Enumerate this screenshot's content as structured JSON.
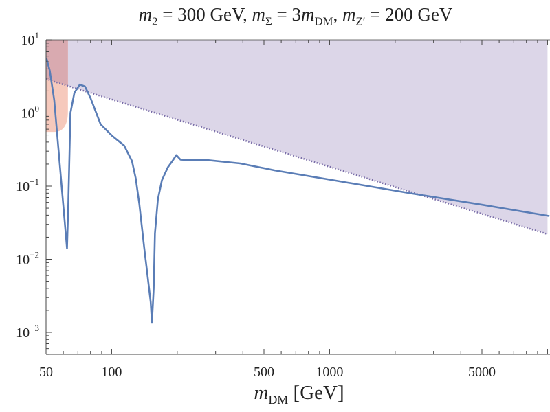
{
  "title": {
    "m": "m",
    "sub2": "2",
    "part1": " = 300 GeV, ",
    "m_sigma": "m",
    "sub_sigma": "Σ",
    "part2": " = 3",
    "m_dm": "m",
    "sub_dm": "DM",
    "part3": ", ",
    "m_z": "m",
    "sub_z": "Z′",
    "part4": " = 200 GeV"
  },
  "chart_data": {
    "type": "line",
    "title": "m2 = 300 GeV, mΣ = 3mDM, mZ′ = 200 GeV",
    "xlabel": "m_DM [GeV]",
    "xlabel_parts": {
      "m": "m",
      "sub": "DM",
      "unit": " [GeV]"
    },
    "ylabel": "",
    "xscale": "log",
    "yscale": "log",
    "xlim": [
      50,
      10000
    ],
    "ylim": [
      0.0005,
      10
    ],
    "grid": false,
    "x_ticks": [
      "50",
      "100",
      "500",
      "1000",
      "5000"
    ],
    "x_tick_values": [
      50,
      100,
      500,
      1000,
      5000
    ],
    "y_ticks": [
      {
        "value": 10,
        "base": "10",
        "exp": "1"
      },
      {
        "value": 1,
        "base": "10",
        "exp": "0"
      },
      {
        "value": 0.1,
        "base": "10",
        "exp": "−1"
      },
      {
        "value": 0.01,
        "base": "10",
        "exp": "−2"
      },
      {
        "value": 0.001,
        "base": "10",
        "exp": "−3"
      }
    ],
    "series": [
      {
        "color": "#5a7db6",
        "x": [
          50.1,
          52,
          54.5,
          62.4,
          63.2,
          64.7,
          67.5,
          71.5,
          75.5,
          80,
          89,
          101,
          114,
          124,
          129,
          134,
          141,
          151,
          153,
          156,
          158,
          163,
          170,
          181,
          190,
          198,
          207,
          218,
          271,
          389,
          560,
          1156,
          2393,
          4943,
          10200
        ],
        "y": [
          5.7,
          3.8,
          1.5,
          0.014,
          0.053,
          1.0,
          1.9,
          2.45,
          2.3,
          1.6,
          0.7,
          0.48,
          0.36,
          0.22,
          0.127,
          0.057,
          0.0146,
          0.0026,
          0.00135,
          0.004,
          0.0225,
          0.066,
          0.12,
          0.18,
          0.22,
          0.265,
          0.23,
          0.228,
          0.228,
          0.204,
          0.164,
          0.114,
          0.079,
          0.056,
          0.039
        ]
      }
    ],
    "regions": [
      {
        "kind": "excluded-above-line",
        "color": "#dcd6e8",
        "edge": "dotted",
        "edge_color": "#7a6ea8",
        "x": [
          50,
          10000
        ],
        "y": [
          2.9,
          0.022
        ]
      },
      {
        "kind": "excluded-box",
        "color": "#f5c6b8",
        "overlap_color": "#d9aab0",
        "x": [
          50,
          63
        ],
        "y_bottom": 0.55,
        "y_top": 10
      }
    ]
  }
}
